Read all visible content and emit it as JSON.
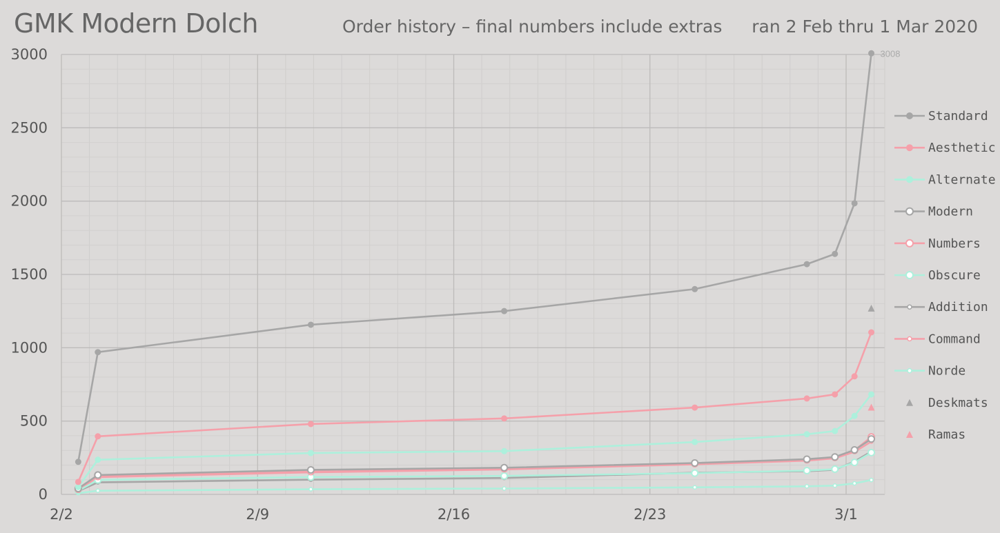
{
  "header": {
    "title": "GMK Modern Dolch",
    "subtitle": "Order history – final numbers include extras",
    "daterange": "ran 2 Feb thru 1 Mar 2020"
  },
  "chart_data": {
    "type": "line",
    "x_start": "2020-02-02",
    "x_ticks": [
      {
        "day": 0,
        "label": "2/2"
      },
      {
        "day": 7,
        "label": "2/9"
      },
      {
        "day": 14,
        "label": "2/16"
      },
      {
        "day": 21,
        "label": "2/23"
      },
      {
        "day": 28,
        "label": "3/1"
      }
    ],
    "ylim": [
      0,
      3000
    ],
    "y_ticks": [
      0,
      500,
      1000,
      1500,
      2000,
      2500,
      3000
    ],
    "grid": true,
    "legend_position": "right",
    "annotation": {
      "text": "3008",
      "series": "Standard"
    },
    "series": [
      {
        "name": "Standard",
        "color": "#a6a6a6",
        "marker": "filled-circle",
        "x": [
          0.6,
          1.3,
          8.9,
          15.8,
          22.6,
          26.6,
          27.6,
          28.3,
          28.9
        ],
        "values": [
          222,
          970,
          1157,
          1250,
          1400,
          1570,
          1640,
          1985,
          3008
        ]
      },
      {
        "name": "Aesthetic",
        "color": "#f5a0aa",
        "marker": "filled-circle",
        "x": [
          0.6,
          1.3,
          8.9,
          15.8,
          22.6,
          26.6,
          27.6,
          28.3,
          28.9
        ],
        "values": [
          85,
          396,
          480,
          518,
          592,
          654,
          682,
          805,
          1105
        ]
      },
      {
        "name": "Alternate",
        "color": "#adf0dc",
        "marker": "filled-circle",
        "x": [
          0.6,
          1.3,
          8.9,
          15.8,
          22.6,
          26.6,
          27.6,
          28.3,
          28.9
        ],
        "values": [
          50,
          236,
          282,
          295,
          357,
          410,
          432,
          535,
          682
        ]
      },
      {
        "name": "Modern",
        "color": "#a6a6a6",
        "marker": "open-circle",
        "x": [
          0.6,
          1.3,
          8.9,
          15.8,
          22.6,
          26.6,
          27.6,
          28.3,
          28.9
        ],
        "values": [
          40,
          132,
          167,
          182,
          214,
          240,
          255,
          303,
          378
        ]
      },
      {
        "name": "Numbers",
        "color": "#f5a0aa",
        "marker": "open-circle",
        "x": [
          0.6,
          1.3,
          8.9,
          15.8,
          22.6,
          26.6,
          27.6,
          28.3,
          28.9
        ],
        "values": [
          35,
          122,
          155,
          175,
          210,
          236,
          252,
          300,
          392
        ]
      },
      {
        "name": "Obscure",
        "color": "#adf0dc",
        "marker": "open-circle",
        "x": [
          0.6,
          1.3,
          8.9,
          15.8,
          22.6,
          26.6,
          27.6,
          28.3,
          28.9
        ],
        "values": [
          25,
          98,
          118,
          126,
          145,
          162,
          172,
          218,
          285
        ]
      },
      {
        "name": "Addition",
        "color": "#a6a6a6",
        "marker": "small-open-circle",
        "x": [
          0.6,
          1.3,
          8.9,
          15.8,
          22.6,
          26.6,
          27.6,
          28.3,
          28.9
        ],
        "values": [
          22,
          82,
          100,
          112,
          148,
          158,
          168,
          225,
          292
        ]
      },
      {
        "name": "Command",
        "color": "#f5a0aa",
        "marker": "small-open-circle",
        "x": [
          0.6,
          1.3,
          8.9,
          15.8,
          22.6,
          26.6,
          27.6,
          28.3,
          28.9
        ],
        "values": [
          30,
          118,
          150,
          170,
          205,
          230,
          246,
          290,
          360
        ]
      },
      {
        "name": "Norde",
        "color": "#adf0dc",
        "marker": "small-open-circle",
        "x": [
          0.6,
          1.3,
          8.9,
          15.8,
          22.6,
          26.6,
          27.6,
          28.3,
          28.9
        ],
        "values": [
          8,
          25,
          35,
          40,
          48,
          55,
          60,
          75,
          98
        ]
      },
      {
        "name": "Deskmats",
        "color": "#a6a6a6",
        "marker": "triangle",
        "x": [
          28.9
        ],
        "values": [
          1270
        ]
      },
      {
        "name": "Ramas",
        "color": "#f5a0aa",
        "marker": "triangle",
        "x": [
          28.9
        ],
        "values": [
          595
        ]
      }
    ]
  }
}
